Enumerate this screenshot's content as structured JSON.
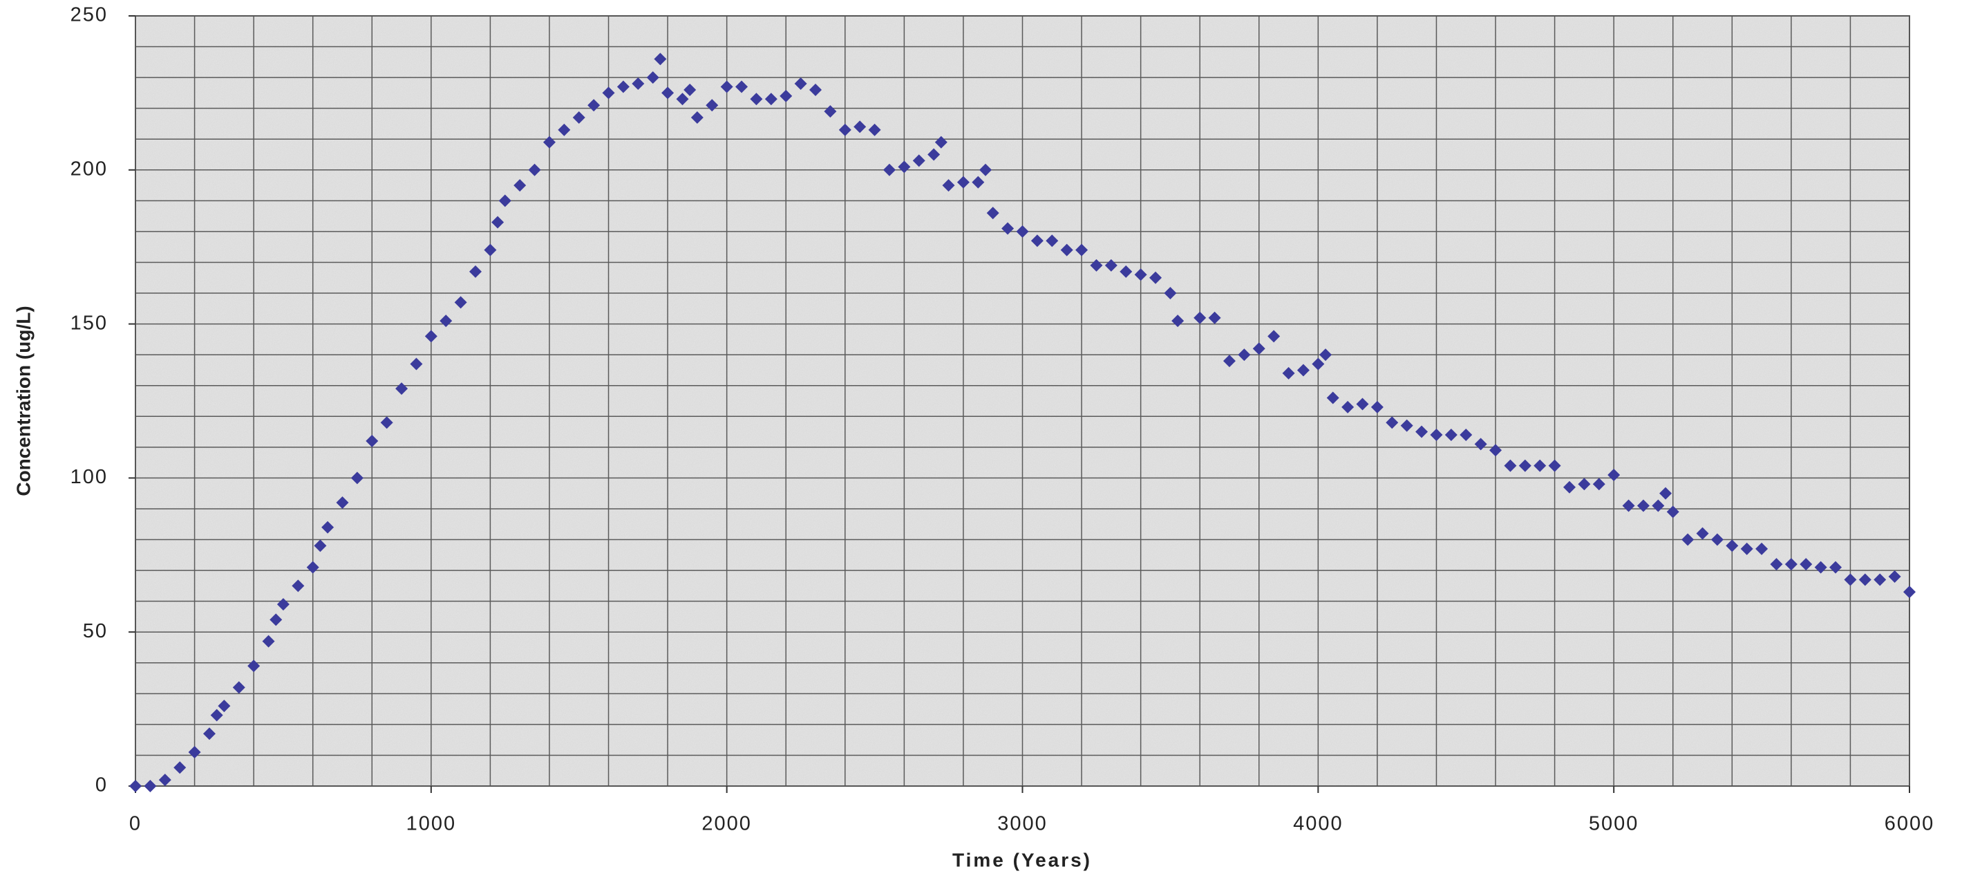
{
  "chart_data": {
    "type": "scatter",
    "xlabel": "Time (Years)",
    "ylabel": "Concentration (ug/L)",
    "xlim": [
      0,
      6000
    ],
    "ylim": [
      0,
      250
    ],
    "xticks": [
      0,
      1000,
      2000,
      3000,
      4000,
      5000,
      6000
    ],
    "yticks": [
      0,
      50,
      100,
      150,
      200,
      250
    ],
    "x_gridlines": [
      0,
      200,
      400,
      600,
      800,
      1000,
      1200,
      1400,
      1600,
      1800,
      2000,
      2200,
      2400,
      2600,
      2800,
      3000,
      3200,
      3400,
      3600,
      3800,
      4000,
      4200,
      4400,
      4600,
      4800,
      5000,
      5200,
      5400,
      5600,
      5800,
      6000
    ],
    "y_gridlines": [
      0,
      10,
      20,
      30,
      40,
      50,
      60,
      70,
      80,
      90,
      100,
      110,
      120,
      130,
      140,
      150,
      160,
      170,
      180,
      190,
      200,
      210,
      220,
      230,
      240,
      250
    ],
    "grid": true,
    "series": [
      {
        "color": "#3b3b9c",
        "x": [
          0,
          50,
          100,
          150,
          200,
          250,
          275,
          300,
          350,
          400,
          450,
          475,
          500,
          550,
          600,
          625,
          650,
          700,
          750,
          800,
          850,
          900,
          950,
          1000,
          1050,
          1100,
          1150,
          1200,
          1225,
          1250,
          1300,
          1350,
          1400,
          1450,
          1500,
          1550,
          1600,
          1650,
          1700,
          1750,
          1775,
          1800,
          1850,
          1875,
          1900,
          1950,
          2000,
          2050,
          2100,
          2150,
          2200,
          2250,
          2300,
          2350,
          2400,
          2450,
          2500,
          2550,
          2600,
          2650,
          2700,
          2725,
          2750,
          2800,
          2850,
          2875,
          2900,
          2950,
          3000,
          3050,
          3100,
          3150,
          3200,
          3250,
          3300,
          3350,
          3400,
          3450,
          3500,
          3525,
          3600,
          3650,
          3700,
          3750,
          3800,
          3850,
          3900,
          3950,
          4000,
          4025,
          4050,
          4100,
          4150,
          4200,
          4250,
          4300,
          4350,
          4400,
          4450,
          4500,
          4550,
          4600,
          4650,
          4700,
          4750,
          4800,
          4850,
          4900,
          4950,
          5000,
          5050,
          5100,
          5150,
          5175,
          5200,
          5250,
          5300,
          5350,
          5400,
          5450,
          5500,
          5550,
          5600,
          5650,
          5700,
          5750,
          5800,
          5850,
          5900,
          5950,
          6000
        ],
        "values": [
          0,
          0,
          2,
          6,
          11,
          17,
          23,
          26,
          32,
          39,
          47,
          54,
          59,
          65,
          71,
          78,
          84,
          92,
          100,
          112,
          118,
          129,
          137,
          146,
          151,
          157,
          167,
          174,
          183,
          190,
          195,
          200,
          209,
          213,
          217,
          221,
          225,
          227,
          228,
          230,
          236,
          225,
          223,
          226,
          217,
          221,
          227,
          227,
          223,
          223,
          224,
          228,
          226,
          219,
          213,
          214,
          213,
          200,
          201,
          203,
          205,
          209,
          195,
          196,
          196,
          200,
          186,
          181,
          180,
          177,
          177,
          174,
          174,
          169,
          169,
          167,
          166,
          165,
          160,
          151,
          152,
          152,
          138,
          140,
          142,
          146,
          134,
          135,
          137,
          140,
          126,
          123,
          124,
          123,
          118,
          117,
          115,
          114,
          114,
          114,
          111,
          109,
          104,
          104,
          104,
          104,
          97,
          98,
          98,
          101,
          91,
          91,
          91,
          95,
          89,
          80,
          82,
          80,
          78,
          77,
          77,
          72,
          72,
          72,
          71,
          71,
          67,
          67,
          67,
          68,
          63
        ]
      }
    ]
  }
}
